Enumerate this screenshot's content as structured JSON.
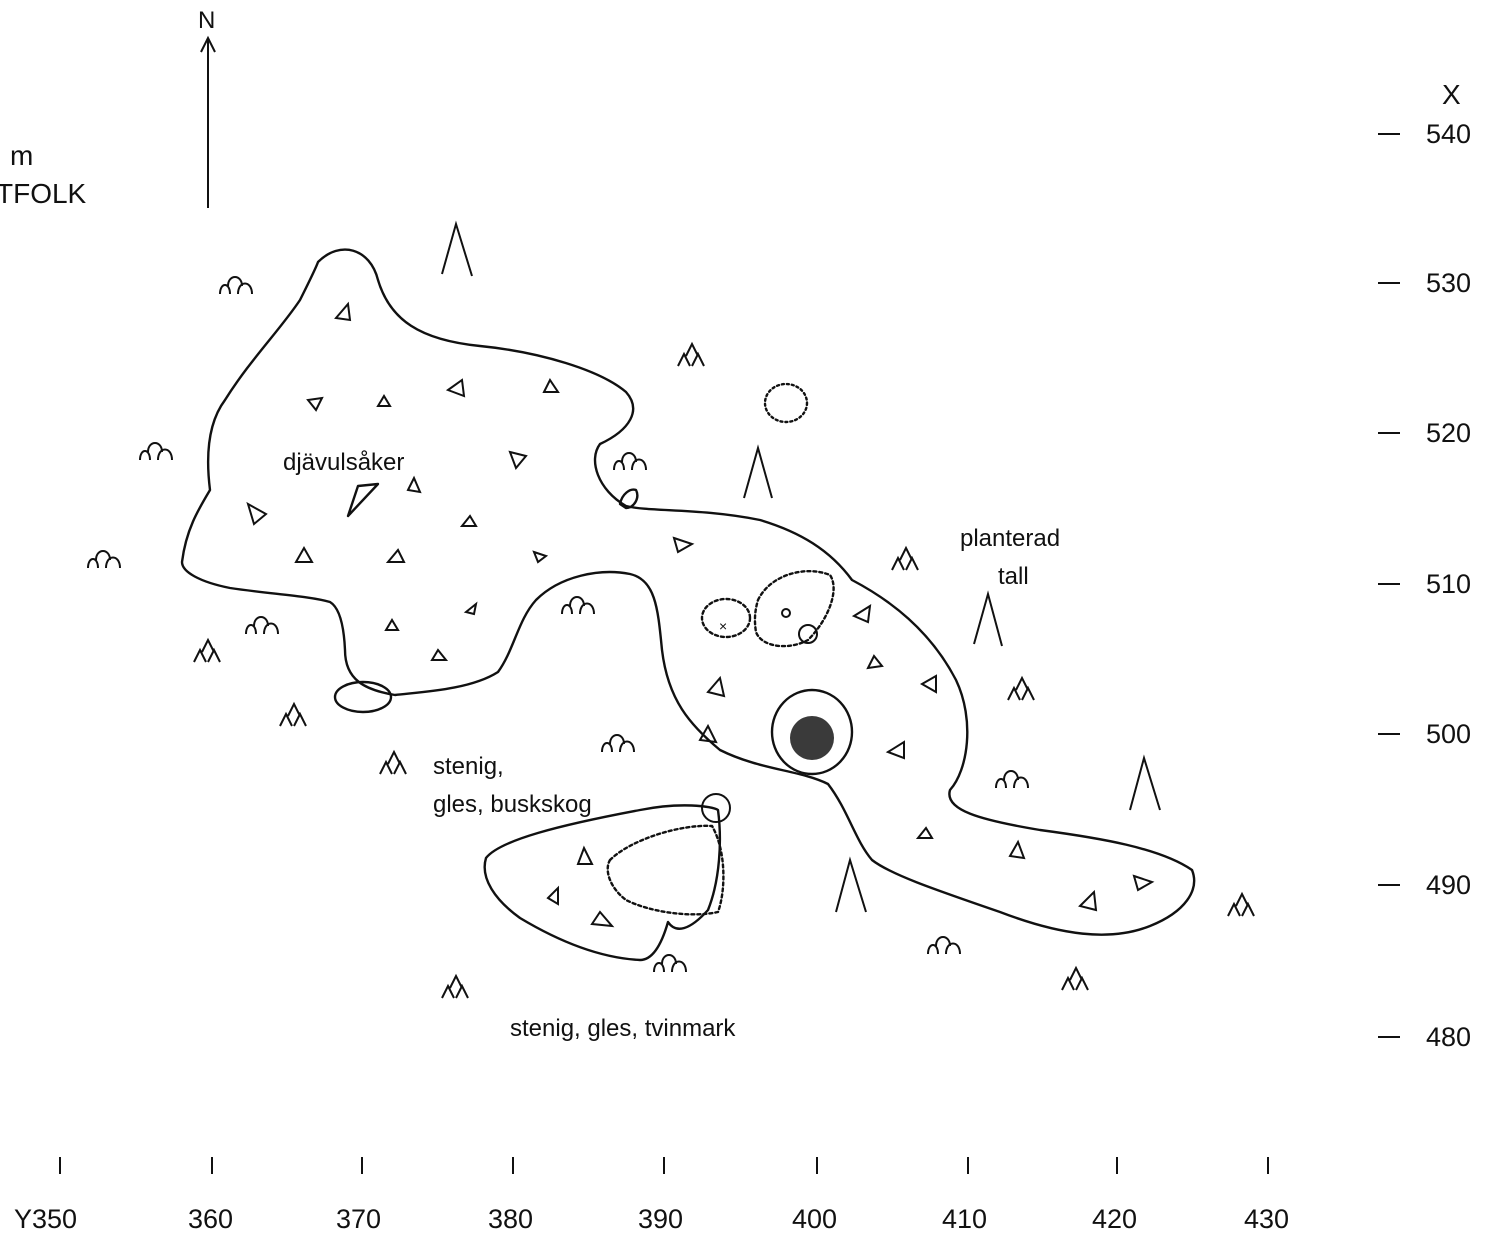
{
  "north_label": "N",
  "title_fragments": {
    "line1": "m",
    "line2": "TFOLK"
  },
  "x_axis": {
    "title": "X",
    "ticks": [
      "540",
      "530",
      "520",
      "510",
      "500",
      "490",
      "480"
    ]
  },
  "y_axis": {
    "ticks": [
      "Y350",
      "360",
      "370",
      "380",
      "390",
      "400",
      "410",
      "420",
      "430"
    ]
  },
  "labels": {
    "djavulsaker": "djävulsåker",
    "planterad": "planterad",
    "tall": "tall",
    "stenig1": "stenig,",
    "buskskog": "gles, buskskog",
    "tvinmark": "stenig, gles, tvinmark"
  },
  "symbols": {
    "stone": "triangle-stone-icon",
    "deciduous": "deciduous-tree-icon",
    "conifer": "conifer-tree-icon",
    "pine": "tall-pine-icon"
  }
}
